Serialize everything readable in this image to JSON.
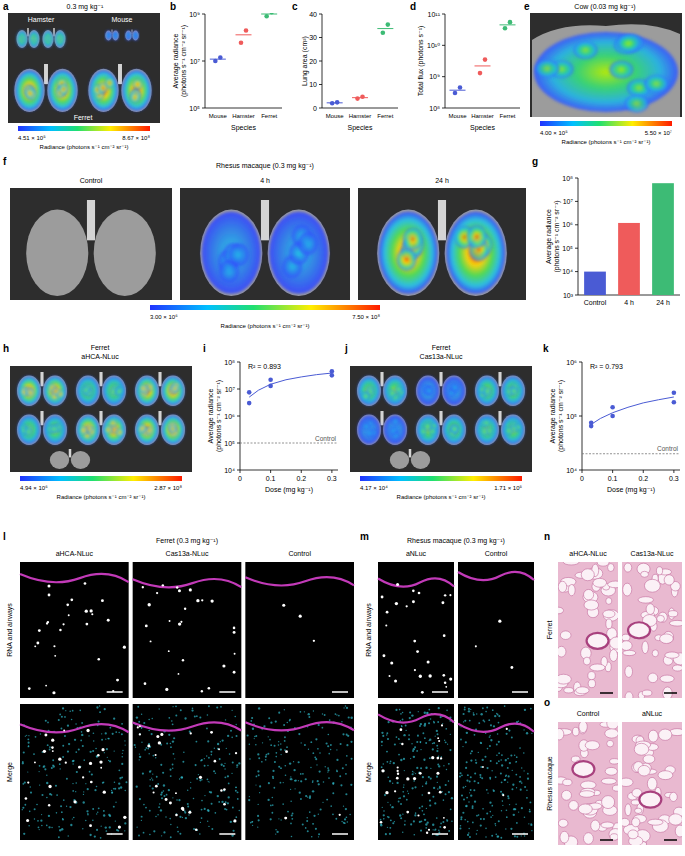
{
  "chart_data": [
    {
      "panel": "b",
      "type": "scatter",
      "categories": [
        "Mouse",
        "Hamster",
        "Ferret"
      ],
      "values": [
        [
          10000000.0,
          14000000.0
        ],
        [
          60000000.0,
          200000000.0
        ],
        [
          800000000.0,
          1200000000.0
        ]
      ],
      "means": [
        12000000.0,
        130000000.0,
        1000000000.0
      ],
      "colors": [
        "#4a5bd4",
        "#ef5b5b",
        "#3dbb75"
      ],
      "xlabel": "Species",
      "ylabel": "Average radiance (photons s⁻¹ cm⁻² sr⁻¹)",
      "log": "y",
      "ylim": [
        100000.0,
        1000000000.0
      ],
      "yticks": [
        {
          "value": 100000.0,
          "label": "10⁵"
        },
        {
          "value": 10000000.0,
          "label": "10⁷"
        },
        {
          "value": 1000000000.0,
          "label": "10⁹"
        }
      ]
    },
    {
      "panel": "c",
      "type": "scatter",
      "categories": [
        "Mouse",
        "Hamster",
        "Ferret"
      ],
      "values": [
        [
          2.0,
          2.4
        ],
        [
          4.0,
          4.8
        ],
        [
          32,
          35.5
        ]
      ],
      "means": [
        2.2,
        4.4,
        33.8
      ],
      "colors": [
        "#4a5bd4",
        "#ef5b5b",
        "#3dbb75"
      ],
      "xlabel": "Species",
      "ylabel": "Lung area (cm²)",
      "ylim": [
        0,
        40
      ],
      "yticks": [
        0,
        10,
        20,
        30,
        40
      ]
    },
    {
      "panel": "d",
      "type": "scatter",
      "categories": [
        "Mouse",
        "Hamster",
        "Ferret"
      ],
      "values": [
        [
          300000000.0,
          450000000.0
        ],
        [
          1300000000.0,
          3500000000.0
        ],
        [
          35000000000.0,
          55000000000.0
        ]
      ],
      "means": [
        370000000.0,
        2200000000.0,
        45000000000.0
      ],
      "colors": [
        "#4a5bd4",
        "#ef5b5b",
        "#3dbb75"
      ],
      "xlabel": "Species",
      "ylabel": "Total flux (photons s⁻¹)",
      "log": "y",
      "ylim": [
        100000000.0,
        100000000000.0
      ],
      "yticks": [
        {
          "value": 100000000.0,
          "label": "10⁸"
        },
        {
          "value": 1000000000.0,
          "label": "10⁹"
        },
        {
          "value": 10000000000.0,
          "label": "10¹⁰"
        },
        {
          "value": 100000000000.0,
          "label": "10¹¹"
        }
      ]
    },
    {
      "panel": "g",
      "type": "bar",
      "categories": [
        "Control",
        "4 h",
        "24 h"
      ],
      "values": [
        10000.0,
        1200000.0,
        60000000.0
      ],
      "colors": [
        "#4a5bd4",
        "#ef5b5b",
        "#3dbb75"
      ],
      "ylabel": "Average radiance (photons s⁻¹ cm⁻² sr⁻¹)",
      "log": "y",
      "ylim": [
        1000.0,
        100000000.0
      ],
      "yticks": [
        {
          "value": 1000.0,
          "label": "10³"
        },
        {
          "value": 10000.0,
          "label": "10⁴"
        },
        {
          "value": 100000.0,
          "label": "10⁵"
        },
        {
          "value": 1000000.0,
          "label": "10⁶"
        },
        {
          "value": 10000000.0,
          "label": "10⁷"
        },
        {
          "value": 100000000.0,
          "label": "10⁸"
        }
      ]
    },
    {
      "panel": "i",
      "type": "scatter",
      "x": [
        0.03,
        0.03,
        0.1,
        0.1,
        0.3,
        0.3
      ],
      "values": [
        3000000.0,
        7500000.0,
        13000000.0,
        22000000.0,
        32000000.0,
        45000000.0
      ],
      "color": "#4a5bd4",
      "fit": {
        "x": [
          0.03,
          0.06,
          0.1,
          0.15,
          0.2,
          0.25,
          0.3
        ],
        "values": [
          5000000.0,
          9000000.0,
          15000000.0,
          22000000.0,
          28000000.0,
          34000000.0,
          39000000.0
        ]
      },
      "control": {
        "value": 100000.0,
        "label": "Control"
      },
      "annotation": "R² = 0.893",
      "xlabel": "Dose (mg kg⁻¹)",
      "ylabel": "Average radiance (photons s⁻¹ cm⁻² sr⁻¹)",
      "log": "y",
      "xlim": [
        0,
        0.32
      ],
      "xticks": [
        0,
        0.1,
        0.2,
        0.3
      ],
      "ylim": [
        10000.0,
        100000000.0
      ],
      "yticks": [
        {
          "value": 10000.0,
          "label": "10⁴"
        },
        {
          "value": 100000.0,
          "label": "10⁵"
        },
        {
          "value": 1000000.0,
          "label": "10⁶"
        },
        {
          "value": 10000000.0,
          "label": "10⁷"
        },
        {
          "value": 100000000.0,
          "label": "10⁸"
        }
      ]
    },
    {
      "panel": "k",
      "type": "scatter",
      "x": [
        0.03,
        0.03,
        0.1,
        0.1,
        0.3,
        0.3
      ],
      "values": [
        65000.0,
        75000.0,
        100000.0,
        145000.0,
        180000.0,
        270000.0
      ],
      "color": "#4a5bd4",
      "fit": {
        "x": [
          0.03,
          0.06,
          0.1,
          0.15,
          0.2,
          0.25,
          0.3
        ],
        "values": [
          70000.0,
          90000.0,
          115000.0,
          145000.0,
          175000.0,
          200000.0,
          225000.0
        ]
      },
      "control": {
        "value": 20000.0,
        "label": "Control"
      },
      "annotation": "R² = 0.793",
      "xlabel": "Dose (mg kg⁻¹)",
      "ylabel": "Average radiance (photons s⁻¹ cm⁻² sr⁻¹)",
      "log": "y",
      "xlim": [
        0,
        0.32
      ],
      "xticks": [
        0,
        0.1,
        0.2,
        0.3
      ],
      "ylim": [
        10000.0,
        1000000.0
      ],
      "yticks": [
        {
          "value": 10000.0,
          "label": "10⁴"
        },
        {
          "value": 100000.0,
          "label": "10⁵"
        },
        {
          "value": 1000000.0,
          "label": "10⁶"
        }
      ]
    }
  ],
  "images": [
    {
      "panel": "a",
      "title": [
        "0.3 mg kg⁻¹"
      ],
      "labels": [
        "Hamster",
        "Mouse",
        "Ferret"
      ],
      "colorbar": {
        "min": "4.51 × 10⁵",
        "max": "8.67 × 10⁸",
        "label": "Radiance (photons s⁻¹ cm⁻² sr⁻¹)"
      }
    },
    {
      "panel": "e",
      "title": [
        "Cow (0.03 mg kg⁻¹)"
      ],
      "colorbar": {
        "min": "4.00 × 10⁵",
        "max": "5.50 × 10⁷",
        "label": "Radiance (photons s⁻¹ cm⁻² sr⁻¹)"
      }
    },
    {
      "panel": "f",
      "title": [
        "Rhesus macaque (0.3 mg kg⁻¹)"
      ],
      "labels": [
        "Control",
        "4 h",
        "24 h"
      ],
      "colorbar": {
        "min": "3.00 × 10⁶",
        "max": "7.50 × 10⁸",
        "label": "Radiance (photons s⁻¹ cm⁻² sr⁻¹)"
      }
    },
    {
      "panel": "h",
      "title": [
        "Ferret",
        "aHCA-NLuc"
      ],
      "colorbar": {
        "min": "4.94 × 10⁶",
        "max": "2.87 × 10⁸",
        "label": "Radiance (photons s⁻¹ cm⁻² sr⁻¹)"
      }
    },
    {
      "panel": "j",
      "title": [
        "Ferret",
        "Cas13a-NLuc"
      ],
      "colorbar": {
        "min": "4.17 × 10⁴",
        "max": "1.71 × 10⁵",
        "label": "Radiance (photons s⁻¹ cm⁻² sr⁻¹)"
      }
    }
  ],
  "microscopy": [
    {
      "panel": "l",
      "title": "Ferret (0.3 mg kg⁻¹)",
      "columns": [
        "aHCA-NLuc",
        "Cas13a-NLuc",
        "Control"
      ],
      "rows": [
        "RNA and airways",
        "Merge"
      ]
    },
    {
      "panel": "m",
      "title": "Rhesus macaque (0.3 mg kg⁻¹)",
      "columns": [
        "aNLuc",
        "Control"
      ],
      "rows": [
        "RNA and airways",
        "Merge"
      ]
    }
  ],
  "histology": [
    {
      "panel": "n",
      "title": "Ferret",
      "columns": [
        "aHCA-NLuc",
        "Cas13a-NLuc"
      ]
    },
    {
      "panel": "o",
      "title": "Rhesus macaque",
      "columns": [
        "Control",
        "aNLuc"
      ]
    }
  ]
}
